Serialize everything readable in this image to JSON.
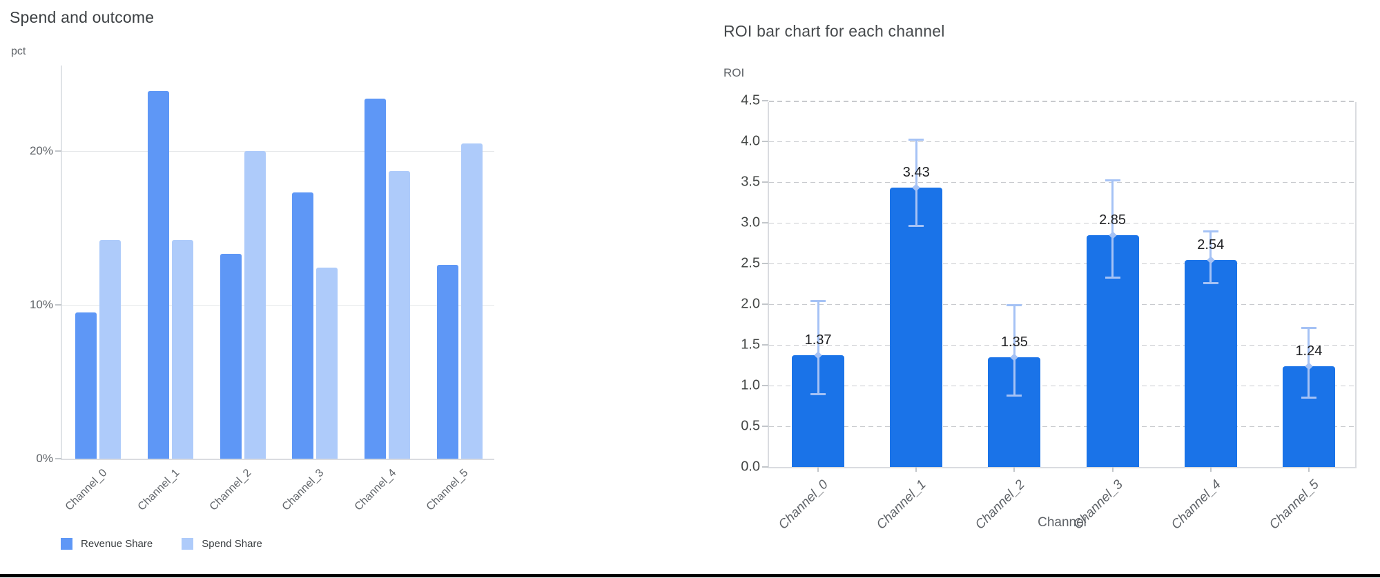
{
  "page": {
    "background": "#ffffff",
    "bottom_edge_color": "#000000"
  },
  "left_chart": {
    "title": "Spend and outcome",
    "y_axis_title": "pct"
  },
  "right_chart": {
    "title": "ROI bar chart for each channel",
    "y_axis_title": "ROI",
    "x_axis_title": "Channel"
  },
  "chart_data": [
    {
      "type": "bar",
      "title": "Spend and outcome",
      "xlabel": "",
      "ylabel": "pct",
      "categories": [
        "Channel_0",
        "Channel_1",
        "Channel_2",
        "Channel_3",
        "Channel_4",
        "Channel_5"
      ],
      "series": [
        {
          "name": "Revenue Share",
          "color": "#5e97f6",
          "values": [
            9.5,
            23.9,
            13.3,
            17.3,
            23.4,
            12.6
          ]
        },
        {
          "name": "Spend Share",
          "color": "#aecbfa",
          "values": [
            14.2,
            14.2,
            20.0,
            12.4,
            18.7,
            20.5
          ]
        }
      ],
      "unit": "percent",
      "ytick_labels": [
        "0%",
        "10%",
        "20%"
      ],
      "ytick_values": [
        0,
        10,
        20
      ],
      "ylim": [
        0,
        25.65
      ],
      "grid": "horizontal-solid",
      "legend_position": "bottom-left"
    },
    {
      "type": "bar",
      "title": "ROI bar chart for each channel",
      "xlabel": "Channel",
      "ylabel": "ROI",
      "categories": [
        "Channel_0",
        "Channel_1",
        "Channel_2",
        "Channel_3",
        "Channel_4",
        "Channel_5"
      ],
      "values": [
        1.37,
        3.43,
        1.35,
        2.85,
        2.54,
        1.24
      ],
      "value_labels": [
        "1.37",
        "3.43",
        "1.35",
        "2.85",
        "2.54",
        "1.24"
      ],
      "error_low": [
        0.89,
        2.96,
        0.88,
        2.33,
        2.26,
        0.85
      ],
      "error_high": [
        2.04,
        4.02,
        1.99,
        3.52,
        2.89,
        1.71
      ],
      "bar_color": "#1a73e8",
      "error_color": "#a5c2f5",
      "ytick_labels": [
        "0.0",
        "0.5",
        "1.0",
        "1.5",
        "2.0",
        "2.5",
        "3.0",
        "3.5",
        "4.0",
        "4.5"
      ],
      "ytick_values": [
        0,
        0.5,
        1.0,
        1.5,
        2.0,
        2.5,
        3.0,
        3.5,
        4.0,
        4.5
      ],
      "ylim": [
        0,
        4.5
      ],
      "grid": "horizontal-dashed",
      "legend_position": "none"
    }
  ]
}
